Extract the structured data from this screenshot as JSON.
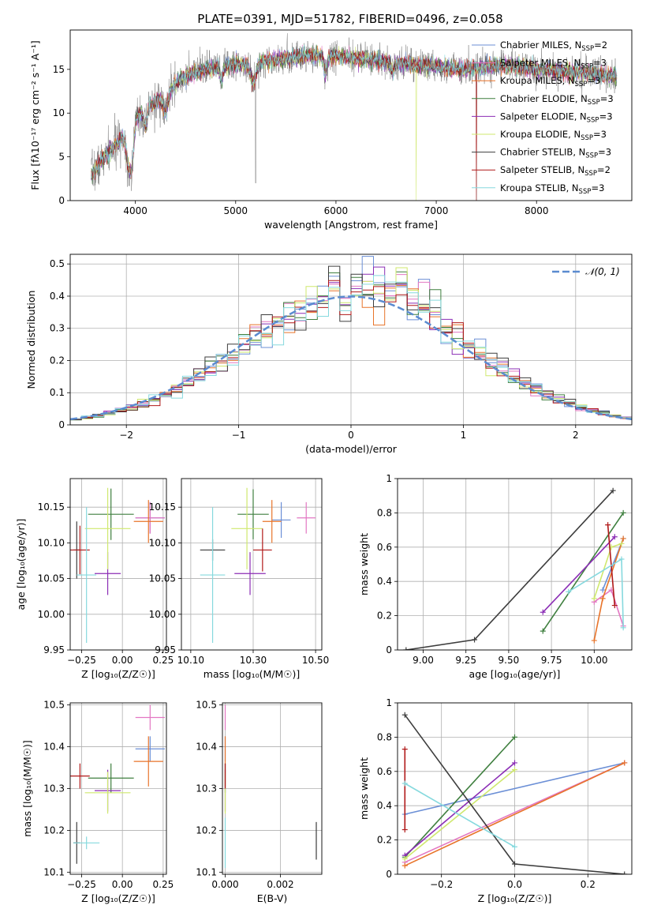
{
  "figure": {
    "title": "PLATE=0391, MJD=51782, FIBERID=0496, z=0.058"
  },
  "colors": {
    "series": [
      "#6b8fd6",
      "#e377c2",
      "#e8742a",
      "#3f7f3f",
      "#8b2db5",
      "#cfe86e",
      "#3d3d3d",
      "#b01919",
      "#86d9de"
    ],
    "gauss": "#5b8bd0"
  },
  "chart_data": [
    {
      "id": "spectrum",
      "type": "line",
      "xlabel": "wavelength [Angstrom, rest frame]",
      "ylabel": "Flux [fλ10⁻¹⁷ erg cm⁻² s⁻¹ A⁻¹]",
      "xlim": [
        3350,
        8950
      ],
      "ylim": [
        0,
        19.5
      ],
      "xticks": [
        4000,
        5000,
        6000,
        7000,
        8000
      ],
      "yticks": [
        0,
        5,
        10,
        15
      ],
      "grid": false,
      "legend": "top-right",
      "shape_profile": {
        "wavelength": [
          3560,
          3700,
          3850,
          4000,
          4150,
          4300,
          4500,
          4700,
          4900,
          5100,
          5300,
          5500,
          5800,
          6100,
          6400,
          6700,
          7000,
          7300,
          7600,
          7900,
          8200,
          8500,
          8800
        ],
        "flux": [
          3.0,
          5.0,
          7.0,
          9.5,
          10.8,
          12.0,
          14.3,
          15.0,
          15.5,
          15.6,
          16.0,
          16.3,
          16.6,
          16.4,
          16.0,
          15.6,
          15.3,
          15.0,
          15.5,
          15.2,
          14.8,
          14.6,
          14.2
        ]
      },
      "legend_entries": [
        {
          "base": "Chabrier MILES, N",
          "sub": "SSP",
          "tail": "=2"
        },
        {
          "base": "Salpeter MILES, N",
          "sub": "SSP",
          "tail": "=3"
        },
        {
          "base": "Kroupa MILES, N",
          "sub": "SSP",
          "tail": "=3"
        },
        {
          "base": "Chabrier ELODIE, N",
          "sub": "SSP",
          "tail": "=3"
        },
        {
          "base": "Salpeter ELODIE, N",
          "sub": "SSP",
          "tail": "=3"
        },
        {
          "base": "Kroupa ELODIE, N",
          "sub": "SSP",
          "tail": "=3"
        },
        {
          "base": "Chabrier STELIB, N",
          "sub": "SSP",
          "tail": "=3"
        },
        {
          "base": "Salpeter STELIB, N",
          "sub": "SSP",
          "tail": "=2"
        },
        {
          "base": "Kroupa STELIB, N",
          "sub": "SSP",
          "tail": "=3"
        }
      ]
    },
    {
      "id": "residuals",
      "type": "line",
      "xlabel": "(data-model)/error",
      "ylabel": "Normed distribution",
      "xlim": [
        -2.5,
        2.5
      ],
      "ylim": [
        0,
        0.53
      ],
      "xticks": [
        -2,
        -1,
        0,
        1,
        2
      ],
      "yticks": [
        0.0,
        0.1,
        0.2,
        0.3,
        0.4,
        0.5
      ],
      "grid": true,
      "legend": "top-right",
      "legend_label": "𝒩(0, 1)",
      "bin_width": 0.1
    },
    {
      "id": "age_vs_Z",
      "type": "scatter",
      "xlabel": "Z [log₁₀(Z/Z☉)]",
      "ylabel": "age  [log₁₀(age/yr)]",
      "xlim": [
        -0.32,
        0.27
      ],
      "ylim": [
        9.95,
        10.19
      ],
      "xticks": [
        -0.25,
        0.0,
        0.25
      ],
      "xticklabels": [
        "−0.25",
        "0.00",
        "0.25"
      ],
      "yticks": [
        9.95,
        10.0,
        10.05,
        10.1,
        10.15
      ],
      "yticklabels": [
        "9.95",
        "10.00",
        "10.05",
        "10.10",
        "10.15"
      ],
      "grid": true,
      "points": [
        {
          "x": 0.17,
          "y": 10.135,
          "xerr": 0.09,
          "yerr": 0.022
        },
        {
          "x": 0.17,
          "y": 10.135,
          "xerr": 0.09,
          "yerr": 0.022
        },
        {
          "x": 0.16,
          "y": 10.13,
          "xerr": 0.09,
          "yerr": 0.03
        },
        {
          "x": -0.07,
          "y": 10.14,
          "xerr": 0.14,
          "yerr": 0.036
        },
        {
          "x": -0.09,
          "y": 10.057,
          "xerr": 0.08,
          "yerr": 0.03
        },
        {
          "x": -0.09,
          "y": 10.12,
          "xerr": 0.14,
          "yerr": 0.057
        },
        {
          "x": -0.28,
          "y": 10.09,
          "xerr": 0.02,
          "yerr": 0.04
        },
        {
          "x": -0.26,
          "y": 10.09,
          "xerr": 0.06,
          "yerr": 0.034
        },
        {
          "x": -0.22,
          "y": 10.055,
          "xerr": 0.06,
          "yerr": 0.095
        }
      ]
    },
    {
      "id": "age_vs_mass",
      "type": "scatter",
      "xlabel": "mass [log₁₀(M/M☉)]",
      "ylabel": "",
      "xlim": [
        10.07,
        10.52
      ],
      "ylim": [
        9.95,
        10.19
      ],
      "xticks": [
        10.1,
        10.3,
        10.5
      ],
      "xticklabels": [
        "10.10",
        "10.30",
        "10.50"
      ],
      "yticks": [
        9.95,
        10.0,
        10.05,
        10.1,
        10.15
      ],
      "yticklabels": [
        "9.95",
        "10.00",
        "10.05",
        "10.10",
        "10.15"
      ],
      "grid": true,
      "points": [
        {
          "x": 10.39,
          "y": 10.132,
          "xerr": 0.03,
          "yerr": 0.025
        },
        {
          "x": 10.47,
          "y": 10.135,
          "xerr": 0.03,
          "yerr": 0.022
        },
        {
          "x": 10.36,
          "y": 10.13,
          "xerr": 0.03,
          "yerr": 0.03
        },
        {
          "x": 10.3,
          "y": 10.14,
          "xerr": 0.05,
          "yerr": 0.035
        },
        {
          "x": 10.29,
          "y": 10.057,
          "xerr": 0.05,
          "yerr": 0.03
        },
        {
          "x": 10.28,
          "y": 10.12,
          "xerr": 0.05,
          "yerr": 0.057
        },
        {
          "x": 10.17,
          "y": 10.09,
          "xerr": 0.04,
          "yerr": 0.015
        },
        {
          "x": 10.33,
          "y": 10.09,
          "xerr": 0.03,
          "yerr": 0.03
        },
        {
          "x": 10.17,
          "y": 10.055,
          "xerr": 0.04,
          "yerr": 0.095
        }
      ]
    },
    {
      "id": "weight_vs_age",
      "type": "line",
      "xlabel": "age  [log₁₀(age/yr)]",
      "ylabel": "mass weight",
      "xlim": [
        8.85,
        10.22
      ],
      "ylim": [
        0,
        1.0
      ],
      "xticks": [
        9.0,
        9.25,
        9.5,
        9.75,
        10.0
      ],
      "xticklabels": [
        "9.00",
        "9.25",
        "9.50",
        "9.75",
        "10.00"
      ],
      "yticks": [
        0.0,
        0.2,
        0.4,
        0.6,
        0.8,
        1.0
      ],
      "grid": true,
      "series": [
        {
          "x": [
            10.05,
            10.17
          ],
          "y": [
            0.35,
            0.65
          ]
        },
        {
          "x": [
            10.0,
            10.1,
            10.17
          ],
          "y": [
            0.28,
            0.35,
            0.14
          ]
        },
        {
          "x": [
            10.0,
            10.05,
            10.17
          ],
          "y": [
            0.055,
            0.3,
            0.65
          ]
        },
        {
          "x": [
            9.7,
            10.17
          ],
          "y": [
            0.11,
            0.8
          ]
        },
        {
          "x": [
            9.7,
            10.12
          ],
          "y": [
            0.22,
            0.66
          ]
        },
        {
          "x": [
            10.0,
            10.1,
            10.16
          ],
          "y": [
            0.3,
            0.6,
            0.62
          ]
        },
        {
          "x": [
            8.9,
            9.3,
            10.11
          ],
          "y": [
            0.0,
            0.06,
            0.93
          ]
        },
        {
          "x": [
            10.08,
            10.12
          ],
          "y": [
            0.73,
            0.26
          ]
        },
        {
          "x": [
            9.85,
            10.16,
            10.17
          ],
          "y": [
            0.34,
            0.53,
            0.13
          ]
        }
      ]
    },
    {
      "id": "mass_vs_Z",
      "type": "scatter",
      "xlabel": "Z [log₁₀(Z/Z☉)]",
      "ylabel": "mass [log₁₀(M/M☉)]",
      "xlim": [
        -0.32,
        0.27
      ],
      "ylim": [
        10.095,
        10.505
      ],
      "xticks": [
        -0.25,
        0.0,
        0.25
      ],
      "xticklabels": [
        "−0.25",
        "0.00",
        "0.25"
      ],
      "yticks": [
        10.1,
        10.2,
        10.3,
        10.4,
        10.5
      ],
      "yticklabels": [
        "10.1",
        "10.2",
        "10.3",
        "10.4",
        "10.5"
      ],
      "grid": true,
      "points": [
        {
          "x": 0.17,
          "y": 10.395,
          "xerr": 0.09,
          "yerr": 0.03
        },
        {
          "x": 0.17,
          "y": 10.47,
          "xerr": 0.09,
          "yerr": 0.03
        },
        {
          "x": 0.16,
          "y": 10.365,
          "xerr": 0.09,
          "yerr": 0.06
        },
        {
          "x": -0.07,
          "y": 10.325,
          "xerr": 0.14,
          "yerr": 0.035
        },
        {
          "x": -0.09,
          "y": 10.295,
          "xerr": 0.08,
          "yerr": 0.05
        },
        {
          "x": -0.09,
          "y": 10.29,
          "xerr": 0.14,
          "yerr": 0.05
        },
        {
          "x": -0.28,
          "y": 10.17,
          "xerr": 0.02,
          "yerr": 0.05
        },
        {
          "x": -0.26,
          "y": 10.33,
          "xerr": 0.06,
          "yerr": 0.03
        },
        {
          "x": -0.22,
          "y": 10.17,
          "xerr": 0.08,
          "yerr": 0.015
        }
      ]
    },
    {
      "id": "mass_vs_EBV",
      "type": "scatter",
      "xlabel": "E(B-V)",
      "ylabel": "",
      "xlim": [
        -0.0001,
        0.0035
      ],
      "ylim": [
        10.095,
        10.505
      ],
      "xticks": [
        0.0,
        0.002
      ],
      "xticklabels": [
        "0.000",
        "0.002"
      ],
      "yticks": [
        10.1,
        10.2,
        10.3,
        10.4,
        10.5
      ],
      "yticklabels": [
        "10.1",
        "10.2",
        "10.3",
        "10.4",
        "10.5"
      ],
      "grid": true,
      "points": [
        {
          "x": 0.0,
          "y": 10.395,
          "xerr": 1e-05,
          "yerr": 0.03
        },
        {
          "x": 0.0,
          "y": 10.47,
          "xerr": 1e-05,
          "yerr": 0.03
        },
        {
          "x": 0.0,
          "y": 10.365,
          "xerr": 1e-05,
          "yerr": 0.06
        },
        {
          "x": 0.0,
          "y": 10.325,
          "xerr": 1e-05,
          "yerr": 0.035
        },
        {
          "x": 0.0,
          "y": 10.295,
          "xerr": 1e-05,
          "yerr": 0.05
        },
        {
          "x": 0.0,
          "y": 10.29,
          "xerr": 1e-05,
          "yerr": 0.05
        },
        {
          "x": 0.0033,
          "y": 10.175,
          "xerr": 1e-05,
          "yerr": 0.045
        },
        {
          "x": 0.0,
          "y": 10.33,
          "xerr": 1e-05,
          "yerr": 0.03
        },
        {
          "x": 0.0,
          "y": 10.17,
          "xerr": 1e-05,
          "yerr": 0.06
        }
      ]
    },
    {
      "id": "weight_vs_Z",
      "type": "line",
      "xlabel": "Z [log₁₀(Z/Z☉)]",
      "ylabel": "mass weight",
      "xlim": [
        -0.32,
        0.32
      ],
      "ylim": [
        0,
        1.0
      ],
      "xticks": [
        -0.2,
        0.0,
        0.2
      ],
      "xticklabels": [
        "−0.2",
        "0.0",
        "0.2"
      ],
      "yticks": [
        0.0,
        0.2,
        0.4,
        0.6,
        0.8,
        1.0
      ],
      "grid": true,
      "series": [
        {
          "x": [
            -0.3,
            0.3
          ],
          "y": [
            0.35,
            0.65
          ]
        },
        {
          "x": [
            -0.3,
            0.3
          ],
          "y": [
            0.07,
            0.65
          ]
        },
        {
          "x": [
            -0.3,
            0.3
          ],
          "y": [
            0.05,
            0.65
          ]
        },
        {
          "x": [
            -0.3,
            0.0
          ],
          "y": [
            0.1,
            0.8
          ]
        },
        {
          "x": [
            -0.3,
            0.0
          ],
          "y": [
            0.11,
            0.65
          ]
        },
        {
          "x": [
            -0.3,
            0.0
          ],
          "y": [
            0.09,
            0.61
          ]
        },
        {
          "x": [
            -0.3,
            0.0,
            0.3
          ],
          "y": [
            0.93,
            0.06,
            0.0
          ]
        },
        {
          "x": [
            -0.3,
            -0.3
          ],
          "y": [
            0.73,
            0.26
          ]
        },
        {
          "x": [
            -0.3,
            0.0
          ],
          "y": [
            0.53,
            0.16
          ]
        }
      ]
    }
  ]
}
